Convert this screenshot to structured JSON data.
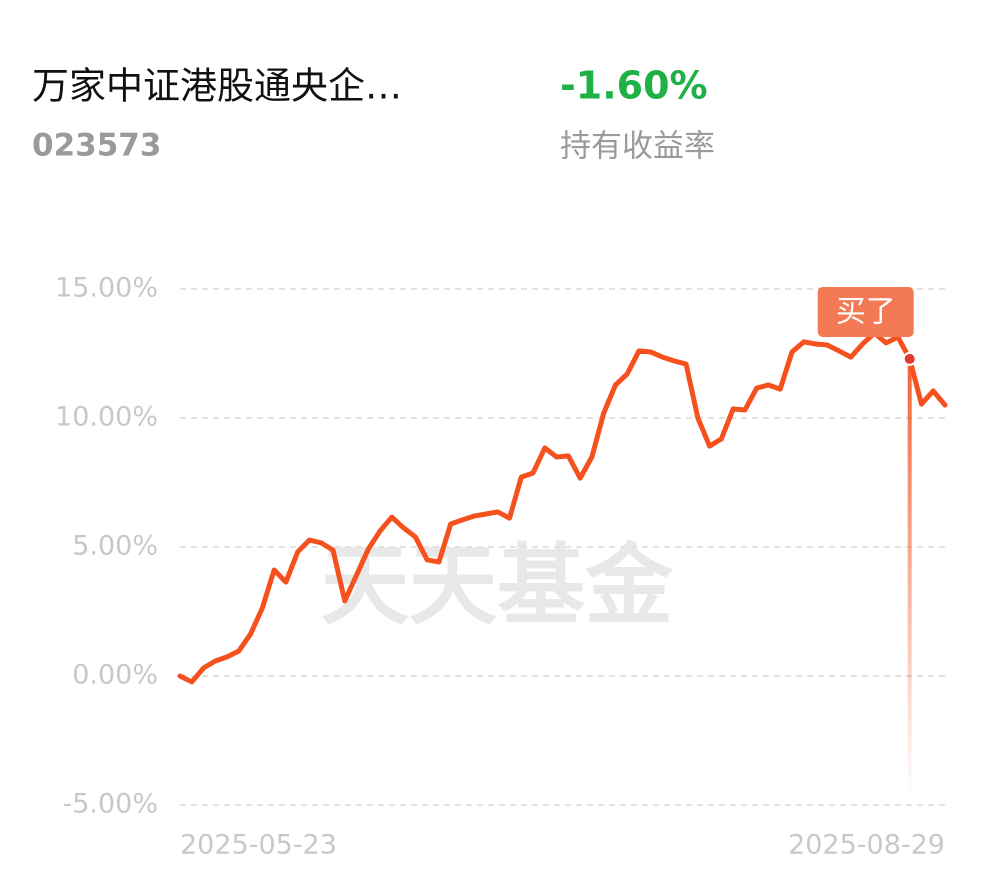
{
  "chart_data": {
    "type": "line",
    "title": "万家中证港股通央企…",
    "subtitle": "023573",
    "return_value": "-1.60%",
    "return_label": "持有收益率",
    "watermark": "天天基金",
    "categories": [
      "2025-05-23",
      null,
      null,
      null,
      null,
      null,
      null,
      null,
      null,
      null,
      null,
      null,
      null,
      null,
      null,
      null,
      null,
      null,
      null,
      null,
      null,
      null,
      null,
      null,
      null,
      null,
      null,
      null,
      null,
      null,
      null,
      null,
      null,
      null,
      null,
      null,
      null,
      null,
      null,
      null,
      null,
      null,
      null,
      null,
      null,
      null,
      null,
      null,
      null,
      null,
      null,
      null,
      null,
      null,
      null,
      null,
      null,
      null,
      null,
      null,
      null,
      null,
      null,
      null,
      null,
      "2025-08-29"
    ],
    "series": [
      {
        "name": "持有收益率",
        "color": "#f4511e",
        "values": [
          0.0,
          -0.23,
          0.31,
          0.58,
          0.74,
          0.97,
          1.63,
          2.64,
          4.11,
          3.64,
          4.81,
          5.27,
          5.16,
          4.88,
          2.91,
          3.91,
          4.92,
          5.62,
          6.16,
          5.74,
          5.39,
          4.5,
          4.42,
          5.89,
          6.05,
          6.2,
          6.28,
          6.36,
          6.12,
          7.71,
          7.87,
          8.84,
          8.49,
          8.53,
          7.67,
          8.49,
          10.19,
          11.28,
          11.71,
          12.6,
          12.56,
          12.36,
          12.21,
          12.09,
          10.0,
          8.91,
          9.19,
          10.35,
          10.31,
          11.16,
          11.28,
          11.12,
          12.56,
          12.95,
          12.87,
          12.83,
          12.6,
          12.36,
          12.87,
          13.29,
          12.91,
          13.14,
          12.29,
          10.54,
          11.05,
          10.5
        ]
      }
    ],
    "annotations": [
      {
        "text": "买了",
        "index": 62
      }
    ],
    "ylim": [
      -5,
      15
    ],
    "yticks": [
      {
        "value": -5,
        "label": "-5.00%"
      },
      {
        "value": 0,
        "label": "0.00%"
      },
      {
        "value": 5,
        "label": "5.00%"
      },
      {
        "value": 10,
        "label": "10.00%"
      },
      {
        "value": 15,
        "label": "15.00%"
      }
    ],
    "grid": true
  }
}
